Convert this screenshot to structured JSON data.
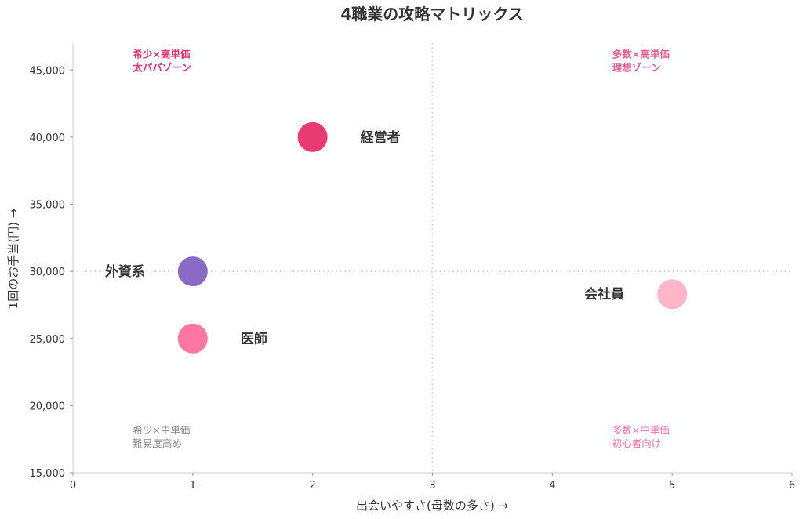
{
  "chart_data": {
    "type": "scatter",
    "title": "4職業の攻略マトリックス",
    "xlabel": "出会いやすさ(母数の多さ) →",
    "ylabel": "1回のお手当(円) →",
    "xlim": [
      0,
      6
    ],
    "ylim": [
      15000,
      47000
    ],
    "x_ticks": [
      0,
      1,
      2,
      3,
      4,
      5,
      6
    ],
    "x_tick_labels": [
      "0",
      "1",
      "2",
      "3",
      "4",
      "5",
      "6"
    ],
    "y_ticks": [
      15000,
      20000,
      25000,
      30000,
      35000,
      40000,
      45000
    ],
    "y_tick_labels": [
      "15,000",
      "20,000",
      "25,000",
      "30,000",
      "35,000",
      "40,000",
      "45,000"
    ],
    "grid": false,
    "reference_lines": {
      "x": 3,
      "y": 30000
    },
    "points": [
      {
        "label": "経営者",
        "x": 2,
        "y": 40000,
        "color": "#e8306a",
        "label_side": "right"
      },
      {
        "label": "外資系",
        "x": 1,
        "y": 30000,
        "color": "#8561c5",
        "label_side": "left"
      },
      {
        "label": "医師",
        "x": 1,
        "y": 25000,
        "color": "#ff6f9f",
        "label_side": "right"
      },
      {
        "label": "会社員",
        "x": 5,
        "y": 28300,
        "color": "#ffb3c6",
        "label_side": "left"
      }
    ],
    "annotations": [
      {
        "line1": "希少×高単価",
        "line2": "太パパゾーン",
        "x": 0.5,
        "y": 46500,
        "color": "#e8306a",
        "bold": true
      },
      {
        "line1": "多数×高単価",
        "line2": "理想ゾーン",
        "x": 4.5,
        "y": 46500,
        "color": "#e85a8c",
        "bold": true
      },
      {
        "line1": "希少×中単価",
        "line2": "難易度高め",
        "x": 0.5,
        "y": 18500,
        "color": "#888888",
        "bold": false
      },
      {
        "line1": "多数×中単価",
        "line2": "初心者向け",
        "x": 4.5,
        "y": 18500,
        "color": "#ff6f9f",
        "bold": false
      }
    ]
  }
}
